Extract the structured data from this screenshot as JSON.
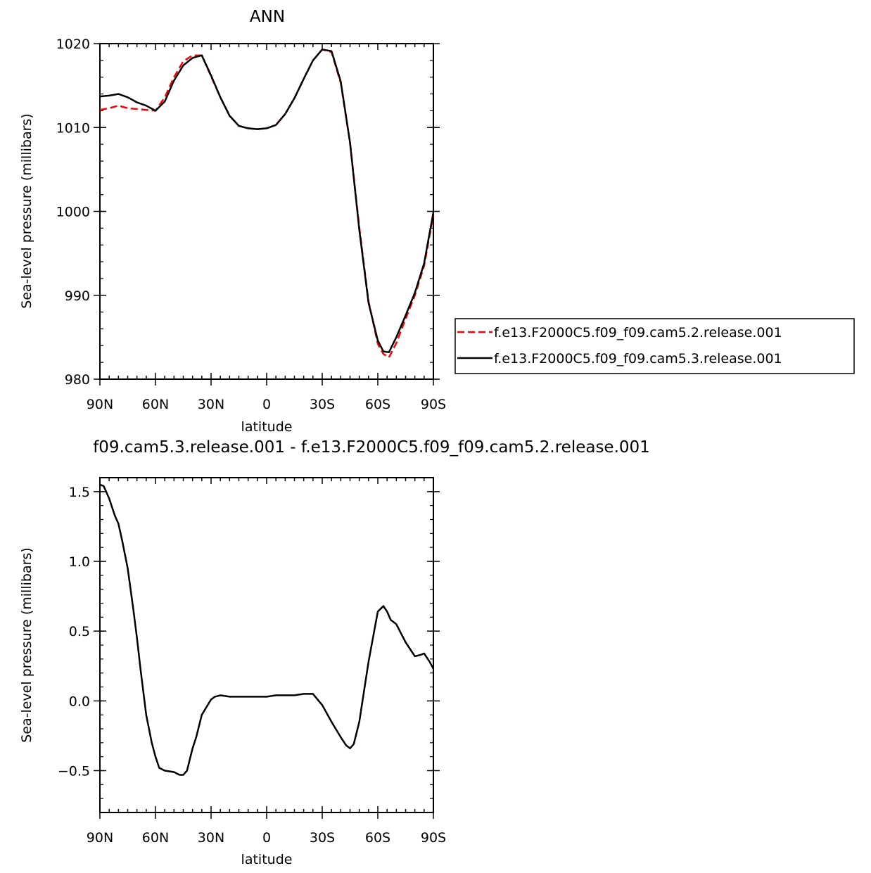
{
  "chart_data": [
    {
      "type": "line",
      "title": "ANN",
      "xlabel": "latitude",
      "ylabel": "Sea-level pressure (millibars)",
      "x_ticks": [
        {
          "value": 90,
          "label": "90N"
        },
        {
          "value": 60,
          "label": "60N"
        },
        {
          "value": 30,
          "label": "30N"
        },
        {
          "value": 0,
          "label": "0"
        },
        {
          "value": -30,
          "label": "30S"
        },
        {
          "value": -60,
          "label": "60S"
        },
        {
          "value": -90,
          "label": "90S"
        }
      ],
      "xlim": [
        90,
        -90
      ],
      "y_ticks": [
        {
          "value": 980,
          "label": "980"
        },
        {
          "value": 990,
          "label": "990"
        },
        {
          "value": 1000,
          "label": "1000"
        },
        {
          "value": 1010,
          "label": "1010"
        },
        {
          "value": 1020,
          "label": "1020"
        }
      ],
      "ylim": [
        980,
        1020
      ],
      "legend_position": "right",
      "series": [
        {
          "name": "f.e13.F2000C5.f09_f09.cam5.2.release.001",
          "color": "#ff0000",
          "dash": "dashed",
          "x": [
            90,
            85,
            80,
            75,
            70,
            65,
            60,
            55,
            50,
            45,
            40,
            35,
            30,
            25,
            20,
            15,
            10,
            5,
            0,
            -5,
            -10,
            -15,
            -20,
            -25,
            -30,
            -35,
            -40,
            -45,
            -50,
            -55,
            -60,
            -63,
            -66,
            -70,
            -75,
            -80,
            -85,
            -90
          ],
          "y": [
            1012.1,
            1012.3,
            1012.6,
            1012.3,
            1012.2,
            1012.1,
            1012.0,
            1013.6,
            1016.0,
            1017.9,
            1018.6,
            1018.6,
            1016.1,
            1013.6,
            1011.4,
            1010.2,
            1009.9,
            1009.8,
            1009.9,
            1010.3,
            1011.6,
            1013.5,
            1015.8,
            1018.0,
            1019.3,
            1019.0,
            1015.3,
            1008.2,
            998.1,
            989.3,
            984.2,
            983.0,
            982.6,
            984.3,
            987.2,
            990.0,
            993.5,
            999.6
          ]
        },
        {
          "name": "f.e13.F2000C5.f09_f09.cam5.3.release.001",
          "color": "#000000",
          "dash": "solid",
          "x": [
            90,
            85,
            80,
            75,
            70,
            65,
            60,
            55,
            50,
            45,
            40,
            35,
            30,
            25,
            20,
            15,
            10,
            5,
            0,
            -5,
            -10,
            -15,
            -20,
            -25,
            -30,
            -35,
            -40,
            -45,
            -50,
            -55,
            -60,
            -63,
            -66,
            -70,
            -75,
            -80,
            -85,
            -90
          ],
          "y": [
            1013.7,
            1013.8,
            1014.0,
            1013.6,
            1013.0,
            1012.6,
            1012.0,
            1013.1,
            1015.6,
            1017.4,
            1018.3,
            1018.6,
            1016.2,
            1013.6,
            1011.4,
            1010.2,
            1009.9,
            1009.8,
            1009.9,
            1010.3,
            1011.6,
            1013.5,
            1015.8,
            1018.0,
            1019.3,
            1019.1,
            1015.5,
            1008.2,
            997.8,
            989.1,
            984.6,
            983.3,
            983.2,
            985.0,
            987.6,
            990.3,
            993.8,
            999.9
          ]
        }
      ]
    },
    {
      "type": "line",
      "title": "f09.cam5.3.release.001 - f.e13.F2000C5.f09_f09.cam5.2.release.001",
      "xlabel": "latitude",
      "ylabel": "Sea-level pressure (millibars)",
      "x_ticks": [
        {
          "value": 90,
          "label": "90N"
        },
        {
          "value": 60,
          "label": "60N"
        },
        {
          "value": 30,
          "label": "30N"
        },
        {
          "value": 0,
          "label": "0"
        },
        {
          "value": -30,
          "label": "30S"
        },
        {
          "value": -60,
          "label": "60S"
        },
        {
          "value": -90,
          "label": "90S"
        }
      ],
      "xlim": [
        90,
        -90
      ],
      "y_ticks": [
        {
          "value": -0.5,
          "label": "−0.5"
        },
        {
          "value": 0.0,
          "label": "0.0"
        },
        {
          "value": 0.5,
          "label": "0.5"
        },
        {
          "value": 1.0,
          "label": "1.0"
        },
        {
          "value": 1.5,
          "label": "1.5"
        }
      ],
      "ylim": [
        -0.8,
        1.6
      ],
      "series": [
        {
          "color": "#000000",
          "dash": "solid",
          "x": [
            90,
            88,
            85,
            82,
            80,
            78,
            75,
            72,
            70,
            68,
            65,
            62,
            60,
            58,
            55,
            50,
            47,
            45,
            43,
            40,
            38,
            35,
            30,
            28,
            25,
            20,
            15,
            10,
            5,
            0,
            -5,
            -10,
            -15,
            -20,
            -25,
            -30,
            -35,
            -40,
            -43,
            -45,
            -47,
            -50,
            -55,
            -60,
            -63,
            -65,
            -67,
            -70,
            -75,
            -80,
            -83,
            -85,
            -88,
            -90
          ],
          "y": [
            1.55,
            1.54,
            1.45,
            1.33,
            1.27,
            1.15,
            0.95,
            0.66,
            0.45,
            0.22,
            -0.1,
            -0.3,
            -0.4,
            -0.48,
            -0.5,
            -0.51,
            -0.53,
            -0.53,
            -0.5,
            -0.34,
            -0.26,
            -0.1,
            0.01,
            0.03,
            0.04,
            0.03,
            0.03,
            0.03,
            0.03,
            0.03,
            0.04,
            0.04,
            0.04,
            0.05,
            0.05,
            -0.03,
            -0.15,
            -0.26,
            -0.32,
            -0.34,
            -0.31,
            -0.15,
            0.28,
            0.64,
            0.68,
            0.64,
            0.58,
            0.55,
            0.42,
            0.32,
            0.33,
            0.34,
            0.28,
            0.23
          ]
        }
      ]
    }
  ]
}
